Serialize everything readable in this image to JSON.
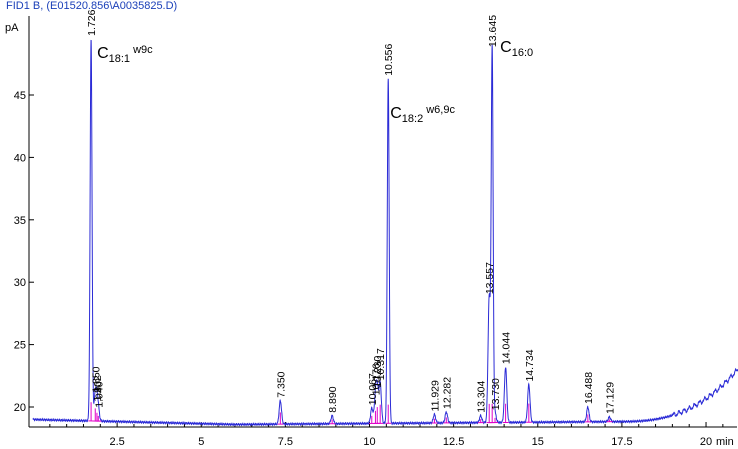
{
  "header": {
    "title": "FID1 B,  (E01520.856\\A0035825.D)"
  },
  "colors": {
    "signal": "#2b2bd6",
    "baseline": "#e000c8",
    "axis": "#000000",
    "header": "#1a3fb8"
  },
  "chart_data": {
    "type": "line",
    "title": "FID1 B,  (E01520.856\\A0035825.D)",
    "ylabel": "pA",
    "xlabel": "min",
    "xlim": [
      0,
      21
    ],
    "ylim": [
      18.2,
      50.5
    ],
    "yticks": [
      20,
      25,
      30,
      35,
      40,
      45
    ],
    "ytick_labels": [
      "20",
      "25",
      "30",
      "35",
      "40",
      "45"
    ],
    "xticks": [
      2.5,
      5,
      7.5,
      10,
      12.5,
      15,
      17.5,
      20
    ],
    "xtick_labels": [
      "2.5",
      "5",
      "7.5",
      "10",
      "12.5",
      "15",
      "17.5",
      "20"
    ],
    "xunit_label": "min",
    "ylabel_text": "pA",
    "peaks": [
      {
        "rt": 1.726,
        "label": "1.726",
        "height": 49.5
      },
      {
        "rt": 1.85,
        "label": "1.850",
        "height": 20.9
      },
      {
        "rt": 1.9,
        "label": "1.902",
        "height": 20.2
      },
      {
        "rt": 1.94,
        "label": "1.940",
        "height": 19.7
      },
      {
        "rt": 7.35,
        "label": "7.350",
        "height": 20.5
      },
      {
        "rt": 8.89,
        "label": "8.890",
        "height": 19.3
      },
      {
        "rt": 10.067,
        "label": "10.067",
        "height": 19.9
      },
      {
        "rt": 10.176,
        "label": "10.176",
        "height": 20.7
      },
      {
        "rt": 10.23,
        "label": "10.230",
        "height": 21.3
      },
      {
        "rt": 10.317,
        "label": "10.317",
        "height": 21.9
      },
      {
        "rt": 10.556,
        "label": "10.556",
        "height": 46.3
      },
      {
        "rt": 11.929,
        "label": "11.929",
        "height": 19.4
      },
      {
        "rt": 12.282,
        "label": "12.282",
        "height": 19.6
      },
      {
        "rt": 13.304,
        "label": "13.304",
        "height": 19.3
      },
      {
        "rt": 13.557,
        "label": "13.557",
        "height": 28.8
      },
      {
        "rt": 13.645,
        "label": "13.645",
        "height": 48.6
      },
      {
        "rt": 13.73,
        "label": "13.730",
        "height": 19.5
      },
      {
        "rt": 14.044,
        "label": "14.044",
        "height": 23.2
      },
      {
        "rt": 14.734,
        "label": "14.734",
        "height": 21.8
      },
      {
        "rt": 16.488,
        "label": "16.488",
        "height": 20.0
      },
      {
        "rt": 17.129,
        "label": "17.129",
        "height": 19.2
      }
    ],
    "annotations": [
      {
        "main": "C",
        "sub": "18:1",
        "sup": "w9c",
        "rt": 1.726
      },
      {
        "main": "C",
        "sub": "18:2",
        "sup": "w6,9c",
        "rt": 10.556
      },
      {
        "main": "C",
        "sub": "16:0",
        "sup": "",
        "rt": 13.645
      }
    ],
    "baseline": {
      "start": 19.0,
      "mid": 18.6,
      "end_rise": 23.2
    }
  }
}
